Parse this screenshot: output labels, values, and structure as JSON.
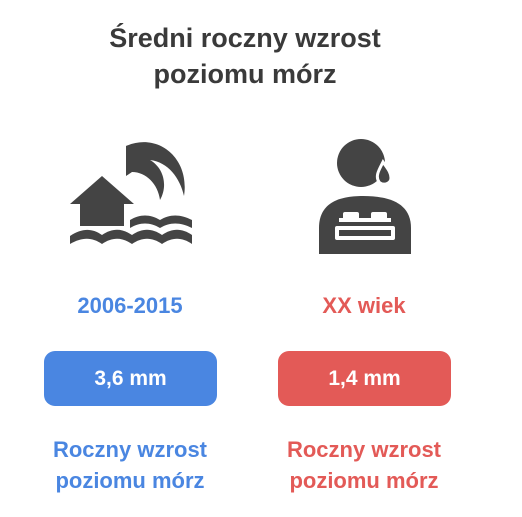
{
  "title": [
    "Średni roczny wzrost",
    "poziomu mórz"
  ],
  "panels": [
    {
      "period": "2006-2015",
      "value": "3,6 mm",
      "caption": [
        "Roczny wzrost",
        "poziomu mórz"
      ],
      "color": "#4a86e1"
    },
    {
      "period": "XX wiek",
      "value": "1,4 mm",
      "caption": [
        "Roczny wzrost",
        "poziomu mórz"
      ],
      "color": "#e35a57"
    }
  ]
}
